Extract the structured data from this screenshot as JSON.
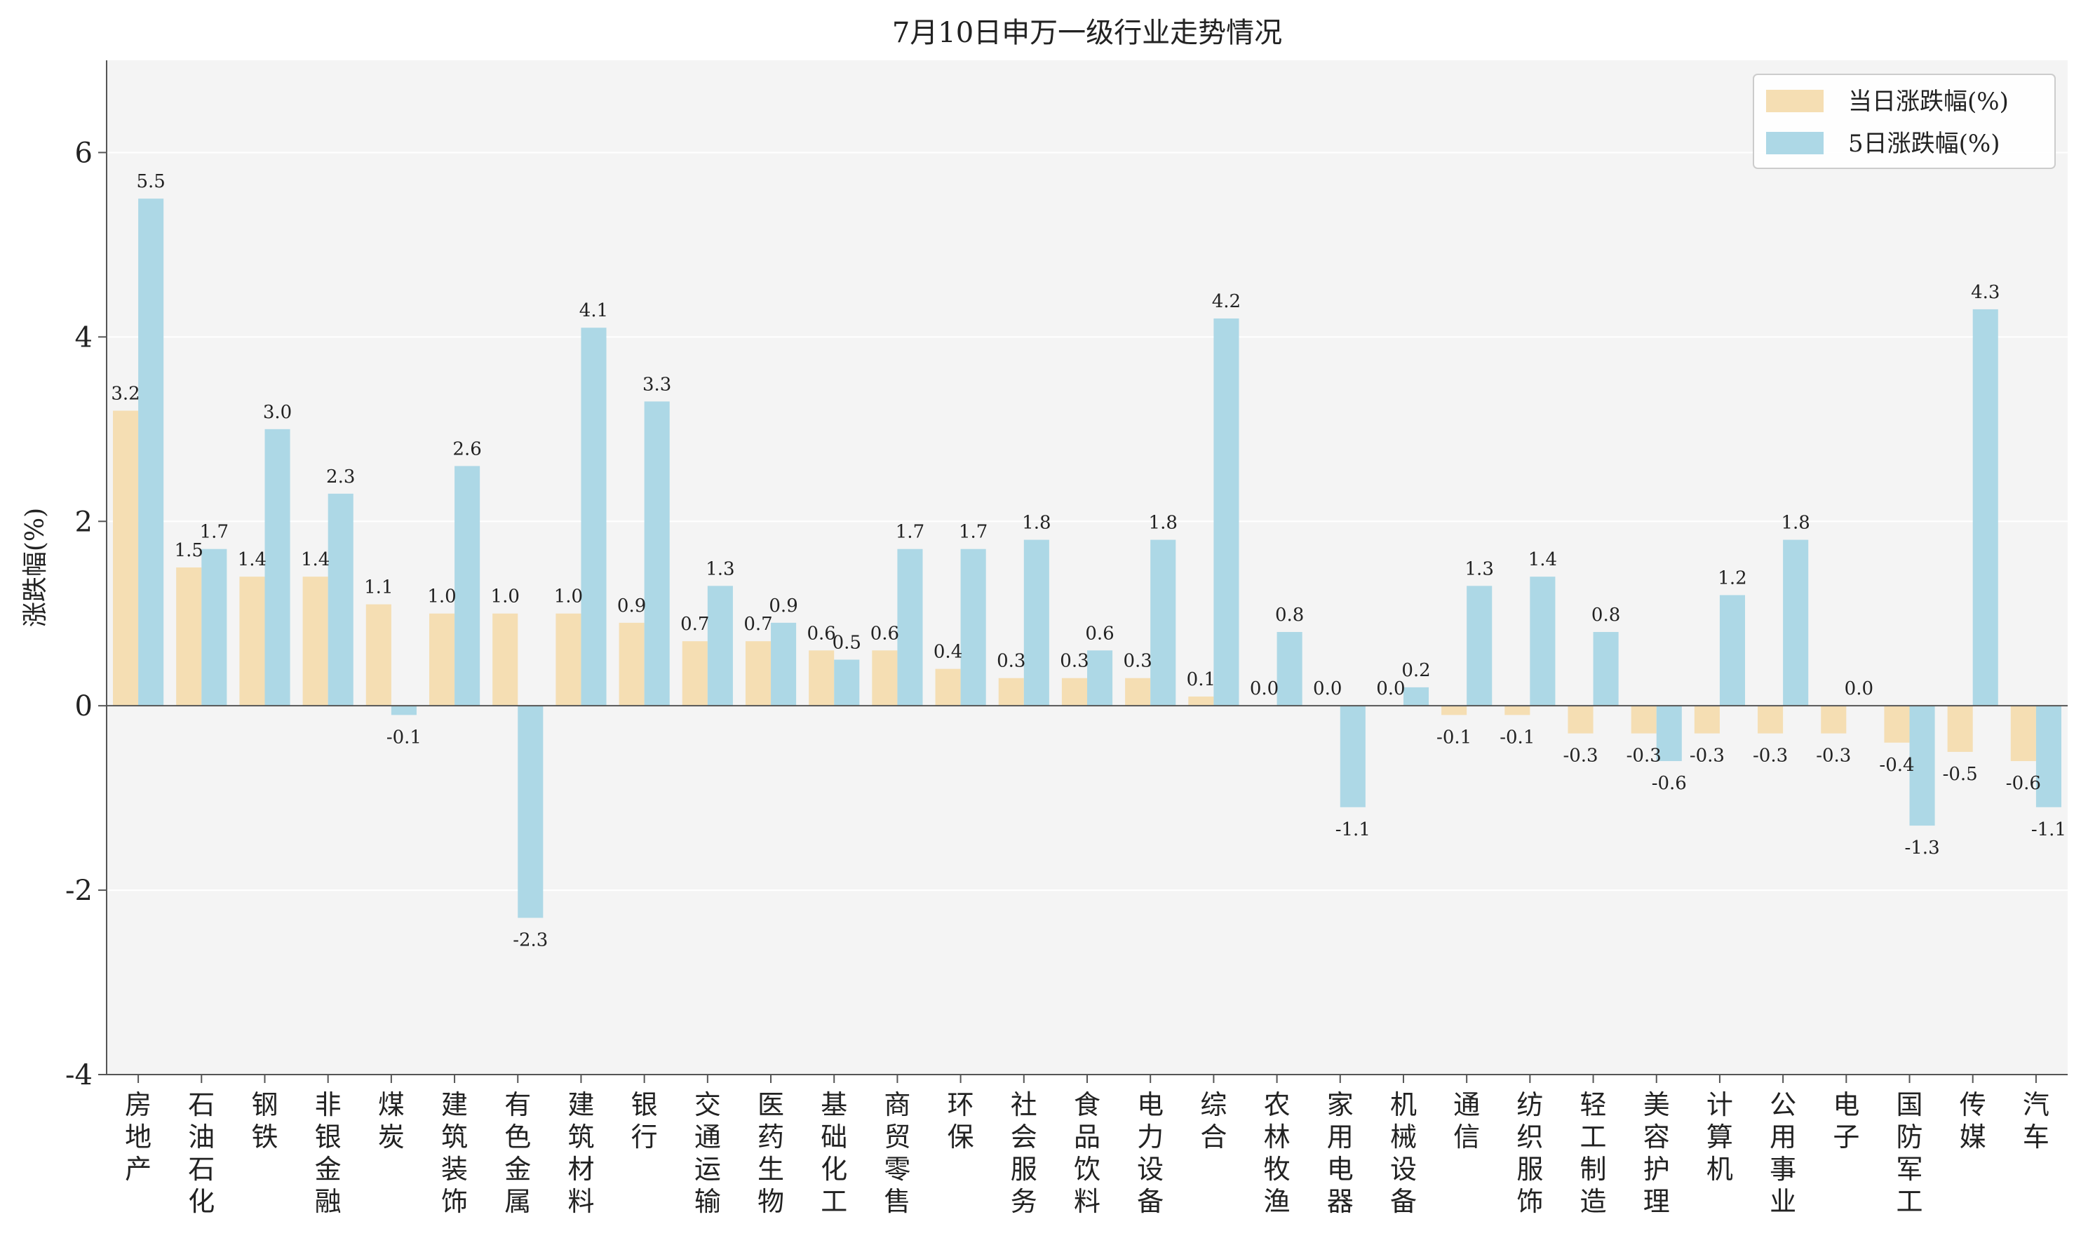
{
  "chart_data": {
    "type": "bar",
    "title": "7月10日申万一级行业走势情况",
    "xlabel": "",
    "ylabel": "涨跌幅(%)",
    "ylim": [
      -4,
      7
    ],
    "yticks": [
      -4,
      -2,
      0,
      2,
      4,
      6
    ],
    "grid": true,
    "legend_position": "top-right",
    "categories": [
      "房地产",
      "石油石化",
      "钢铁",
      "非银金融",
      "煤炭",
      "建筑装饰",
      "有色金属",
      "建筑材料",
      "银行",
      "交通运输",
      "医药生物",
      "基础化工",
      "商贸零售",
      "环保",
      "社会服务",
      "食品饮料",
      "电力设备",
      "综合",
      "农林牧渔",
      "家用电器",
      "机械设备",
      "通信",
      "纺织服饰",
      "轻工制造",
      "美容护理",
      "计算机",
      "公用事业",
      "电子",
      "国防军工",
      "传媒",
      "汽车"
    ],
    "series": [
      {
        "name": "当日涨跌幅(%)",
        "color": "#f5deb3",
        "values": [
          3.2,
          1.5,
          1.4,
          1.4,
          1.1,
          1.0,
          1.0,
          1.0,
          0.9,
          0.7,
          0.7,
          0.6,
          0.6,
          0.4,
          0.3,
          0.3,
          0.3,
          0.1,
          0.0,
          0.0,
          0.0,
          -0.1,
          -0.1,
          -0.3,
          -0.3,
          -0.3,
          -0.3,
          -0.3,
          -0.4,
          -0.5,
          -0.6
        ],
        "labels": [
          "3.2",
          "1.5",
          "1.4",
          "1.4",
          "1.1",
          "1.0",
          "1.0",
          "1.0",
          "0.9",
          "0.7",
          "0.7",
          "0.6",
          "0.6",
          "0.4",
          "0.3",
          "0.3",
          "0.3",
          "0.1",
          "0.0",
          "0.0",
          "0.0",
          "-0.1",
          "-0.1",
          "-0.3",
          "-0.3",
          "-0.3",
          "-0.3",
          "-0.3",
          "-0.4",
          "-0.5",
          "-0.6"
        ]
      },
      {
        "name": "5日涨跌幅(%)",
        "color": "#add8e6",
        "values": [
          5.5,
          1.7,
          3.0,
          2.3,
          -0.1,
          2.6,
          -2.3,
          4.1,
          3.3,
          1.3,
          0.9,
          0.5,
          1.7,
          1.7,
          1.8,
          0.6,
          1.8,
          4.2,
          0.8,
          -1.1,
          0.2,
          1.3,
          1.4,
          0.8,
          -0.6,
          1.2,
          1.8,
          0.0,
          -1.3,
          4.3,
          -1.1
        ],
        "labels": [
          "5.5",
          "1.7",
          "3.0",
          "2.3",
          "-0.1",
          "2.6",
          "-2.3",
          "4.1",
          "3.3",
          "1.3",
          "0.9",
          "0.5",
          "1.7",
          "1.7",
          "1.8",
          "0.6",
          "1.8",
          "4.2",
          "0.8",
          "-1.1",
          "0.2",
          "1.3",
          "1.4",
          "0.8",
          "-0.6",
          "1.2",
          "1.8",
          "0.0",
          "-1.3",
          "4.3",
          "-1.1"
        ]
      }
    ],
    "colors": {
      "plot_background": "#f4f4f4",
      "grid": "#ffffff",
      "zero_line": "#555555",
      "axis": "#555555"
    }
  }
}
